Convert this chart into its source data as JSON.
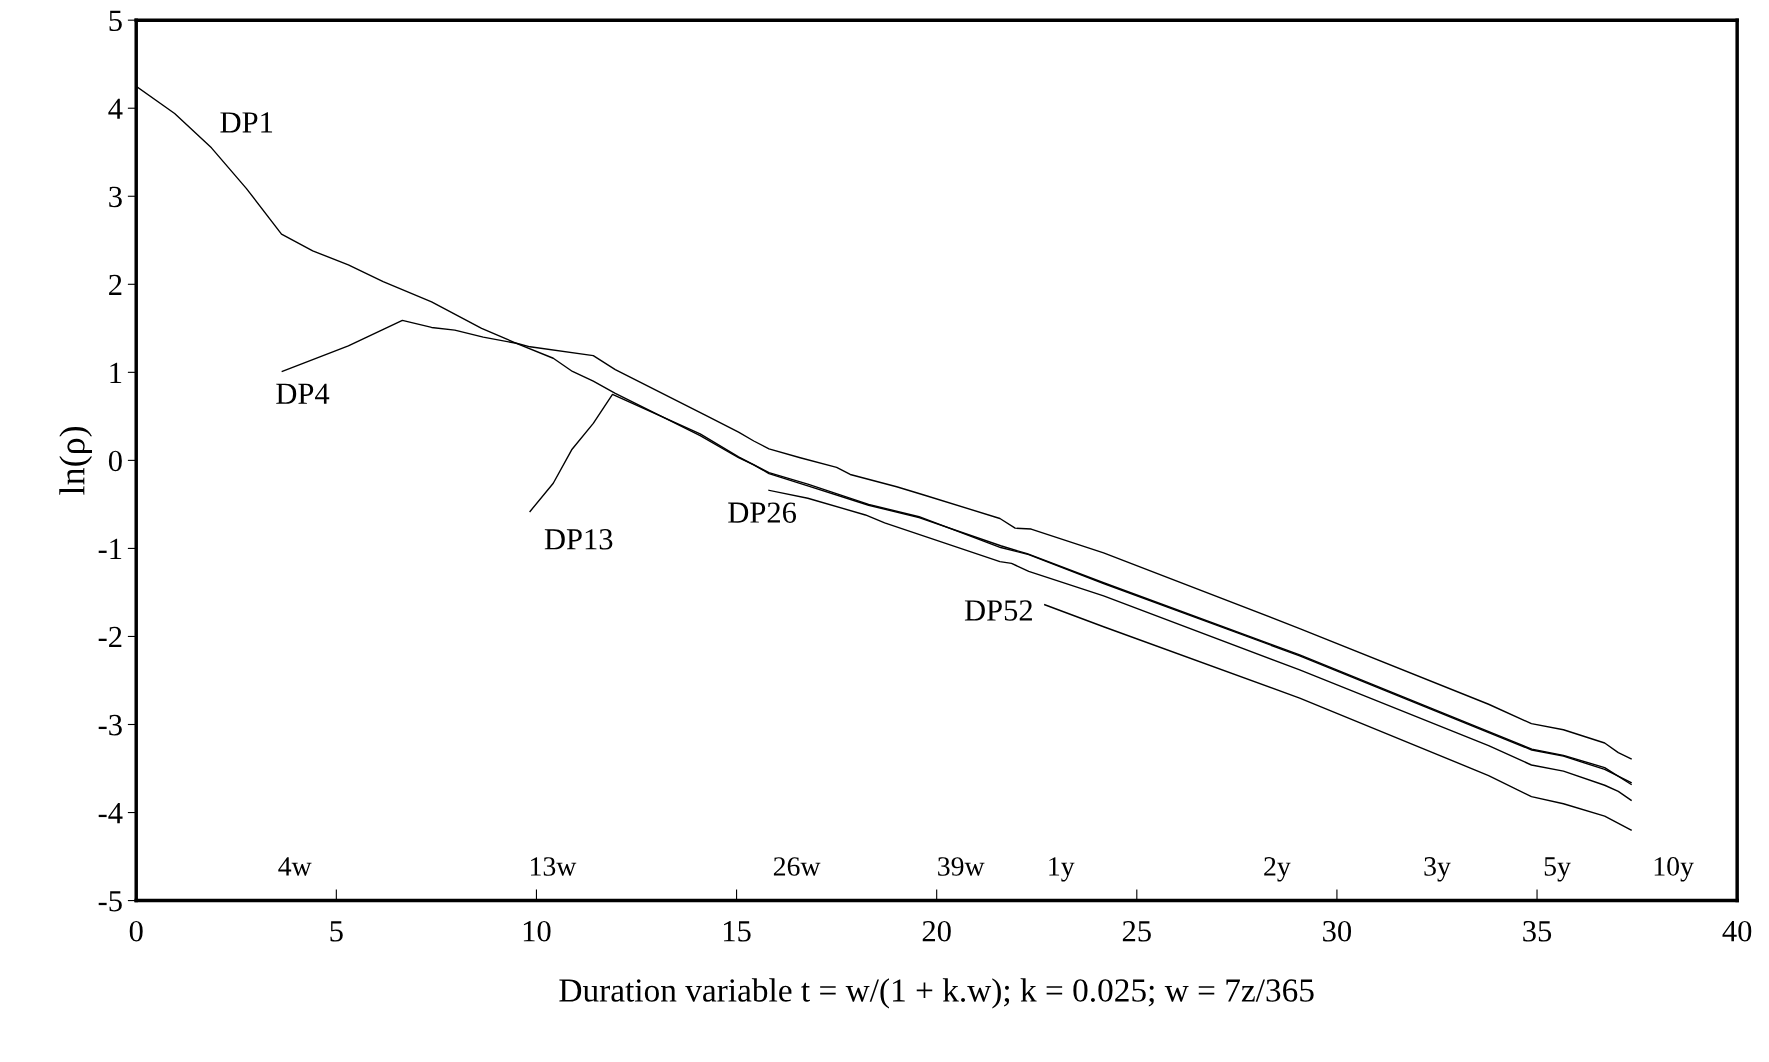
{
  "chart_data": {
    "type": "line",
    "xlabel": "Duration variable t = w/(1 + k.w); k = 0.025; w = 7z/365",
    "ylabel": "ln(ρ)",
    "xlim": [
      0,
      40
    ],
    "xticks": [
      0,
      5,
      10,
      15,
      20,
      25,
      30,
      35,
      40
    ],
    "ylim": [
      -5,
      5
    ],
    "yticks": [
      -5,
      -4,
      -3,
      -2,
      -1,
      0,
      1,
      2,
      3,
      4,
      5
    ],
    "grid": false,
    "legend": false,
    "marker": "none",
    "line_style": "solid",
    "series": [
      {
        "name": "DP1",
        "color": "#000000",
        "x": [
          0.0,
          0.96,
          1.88,
          2.75,
          3.63,
          4.41,
          5.3,
          6.17,
          7.38,
          8.63,
          9.5,
          10.42,
          10.9,
          11.42,
          11.97,
          14.09,
          15.05,
          15.43,
          15.81,
          16.78,
          18.3,
          19.56,
          21.6,
          22.26,
          24.17,
          29.07,
          34.87,
          35.66,
          36.69,
          37.35
        ],
        "values": [
          4.25,
          3.94,
          3.55,
          3.09,
          2.57,
          2.38,
          2.22,
          2.03,
          1.8,
          1.5,
          1.33,
          1.16,
          1.01,
          0.9,
          0.76,
          0.28,
          0.03,
          -0.05,
          -0.15,
          -0.29,
          -0.51,
          -0.65,
          -0.97,
          -1.06,
          -1.39,
          -2.21,
          -3.28,
          -3.35,
          -3.49,
          -3.68
        ]
      },
      {
        "name": "DP4",
        "color": "#000000",
        "x": [
          3.65,
          5.3,
          6.65,
          7.38,
          7.96,
          8.67,
          9.5,
          9.84,
          11.42,
          11.97,
          14.23,
          15.05,
          15.43,
          15.81,
          16.59,
          17.5,
          17.84,
          19.0,
          19.66,
          21.58,
          21.96,
          22.36,
          24.17,
          29.07,
          33.79,
          34.86,
          35.66,
          36.69,
          37.03,
          37.35
        ],
        "values": [
          1.01,
          1.3,
          1.59,
          1.51,
          1.48,
          1.4,
          1.33,
          1.29,
          1.19,
          1.03,
          0.51,
          0.32,
          0.22,
          0.13,
          0.03,
          -0.08,
          -0.16,
          -0.3,
          -0.39,
          -0.66,
          -0.77,
          -0.78,
          -1.05,
          -1.91,
          -2.77,
          -2.99,
          -3.06,
          -3.21,
          -3.32,
          -3.39
        ]
      },
      {
        "name": "DP13",
        "color": "#000000",
        "x": [
          9.84,
          10.42,
          10.88,
          11.42,
          11.9,
          14.09,
          15.05,
          15.81,
          16.78,
          18.3,
          19.56,
          21.6,
          22.3,
          24.17,
          29.07,
          34.87,
          35.66,
          36.69,
          37.35
        ],
        "values": [
          -0.58,
          -0.26,
          0.12,
          0.42,
          0.75,
          0.3,
          0.04,
          -0.14,
          -0.27,
          -0.5,
          -0.64,
          -0.99,
          -1.07,
          -1.4,
          -2.22,
          -3.29,
          -3.36,
          -3.51,
          -3.66
        ]
      },
      {
        "name": "DP26",
        "color": "#000000",
        "x": [
          15.81,
          16.78,
          18.22,
          18.7,
          21.58,
          21.87,
          22.3,
          24.17,
          29.07,
          33.79,
          34.86,
          35.66,
          36.69,
          37.03,
          37.35
        ],
        "values": [
          -0.34,
          -0.43,
          -0.62,
          -0.71,
          -1.15,
          -1.17,
          -1.26,
          -1.54,
          -2.38,
          -3.24,
          -3.46,
          -3.53,
          -3.69,
          -3.76,
          -3.86
        ]
      },
      {
        "name": "DP52",
        "color": "#000000",
        "x": [
          22.7,
          24.17,
          29.07,
          33.79,
          34.86,
          35.66,
          36.69,
          37.35
        ],
        "values": [
          -1.64,
          -1.89,
          -2.7,
          -3.58,
          -3.82,
          -3.9,
          -4.04,
          -4.2
        ]
      }
    ],
    "annotations": [
      "4w",
      "13w",
      "26w",
      "39w",
      "1y",
      "2y",
      "3y",
      "5y",
      "10y"
    ]
  }
}
